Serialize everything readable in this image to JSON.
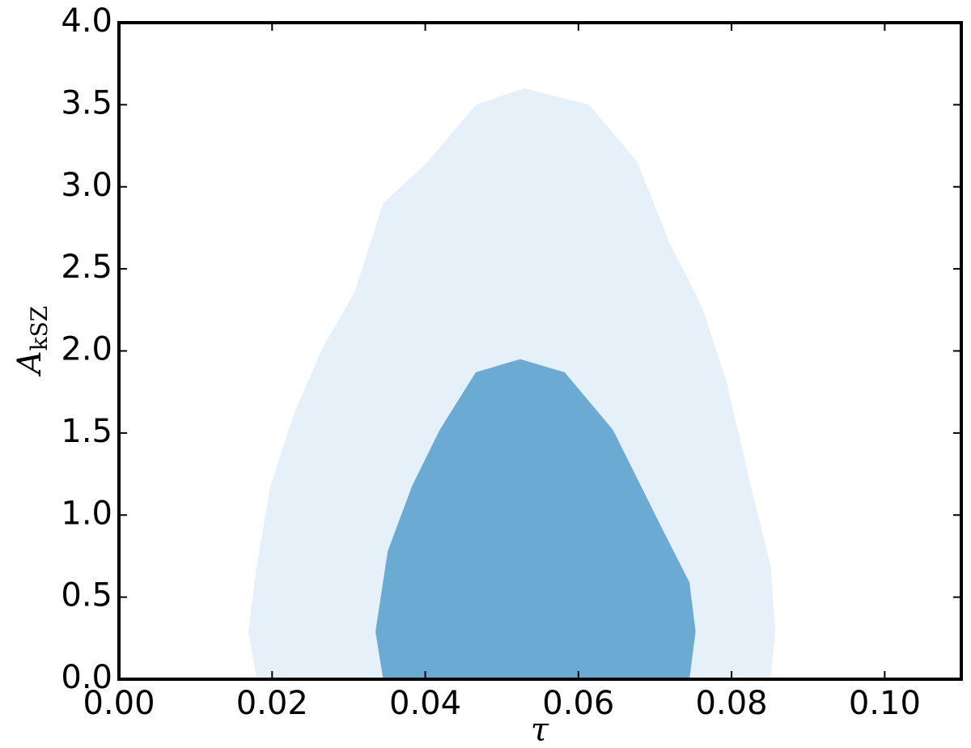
{
  "chart_data": {
    "type": "contour",
    "xlabel": "τ",
    "ylabel": "A",
    "ylabel_sub": "kSZ",
    "xlim": [
      0,
      0.11
    ],
    "ylim": [
      0,
      4
    ],
    "xticks": [
      {
        "value": 0,
        "label": "0.00"
      },
      {
        "value": 0.02,
        "label": "0.02"
      },
      {
        "value": 0.04,
        "label": "0.04"
      },
      {
        "value": 0.06,
        "label": "0.06"
      },
      {
        "value": 0.08,
        "label": "0.08"
      },
      {
        "value": 0.1,
        "label": "0.10"
      }
    ],
    "yticks": [
      {
        "value": 0,
        "label": "0.0"
      },
      0.5,
      {
        "value": 1,
        "label": "1.0"
      },
      1.5,
      {
        "value": 2,
        "label": "2.0"
      },
      2.5,
      {
        "value": 3,
        "label": "3.0"
      },
      3.5,
      {
        "value": 4,
        "label": "4.0"
      }
    ],
    "series": [
      {
        "color": "#e5f0f9",
        "x": [
          0.018,
          0.0169,
          0.018,
          0.0198,
          0.0229,
          0.0266,
          0.0308,
          0.0345,
          0.0403,
          0.0466,
          0.0529,
          0.0614,
          0.0677,
          0.0719,
          0.0762,
          0.0793,
          0.0825,
          0.0851,
          0.0857,
          0.0851
        ],
        "y": [
          0,
          0.29,
          0.69,
          1.18,
          1.62,
          2.02,
          2.36,
          2.9,
          3.15,
          3.5,
          3.6,
          3.5,
          3.15,
          2.66,
          2.26,
          1.82,
          1.18,
          0.69,
          0.29,
          0
        ]
      },
      {
        "color": "#6baad2",
        "x": [
          0.0345,
          0.0335,
          0.0351,
          0.0383,
          0.0419,
          0.0466,
          0.0524,
          0.0582,
          0.0645,
          0.0708,
          0.0745,
          0.0753,
          0.0745
        ],
        "y": [
          0,
          0.29,
          0.78,
          1.18,
          1.52,
          1.87,
          1.95,
          1.87,
          1.52,
          0.93,
          0.59,
          0.29,
          0
        ]
      }
    ]
  }
}
